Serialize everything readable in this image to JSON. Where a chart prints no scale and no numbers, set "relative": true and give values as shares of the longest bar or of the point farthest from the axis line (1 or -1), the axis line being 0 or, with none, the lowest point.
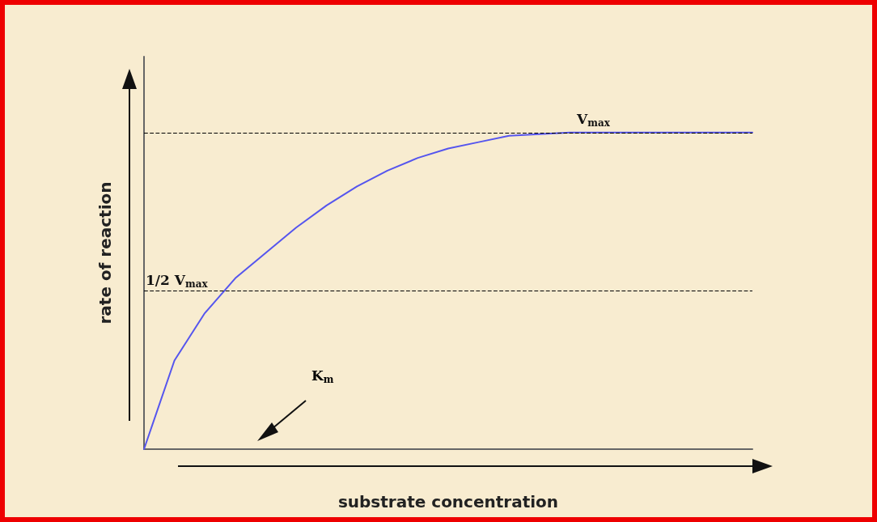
{
  "chart_data": {
    "type": "line",
    "relative": true,
    "xlabel": "substrate concentration",
    "ylabel": "rate of reaction",
    "categories": [
      null,
      null,
      null,
      null,
      null,
      null,
      null,
      null,
      null,
      null,
      null,
      null,
      null,
      null,
      null,
      null,
      null,
      null,
      null,
      null,
      null
    ],
    "series": [
      {
        "color": "#5555ee",
        "values": [
          0,
          0.28,
          0.43,
          0.54,
          0.62,
          0.7,
          0.77,
          0.83,
          0.88,
          0.92,
          0.95,
          0.97,
          0.99,
          0.995,
          1,
          1,
          1,
          1,
          1,
          1,
          1
        ]
      }
    ],
    "ref_lines": [
      {
        "axis": "y",
        "value": 1,
        "label": "V$_{max}$",
        "line_style": "dashed",
        "color": "#000000"
      },
      {
        "axis": "y",
        "value": 0.5,
        "label": "1/2 V$_{max}$",
        "line_style": "dashed",
        "color": "#000000"
      }
    ],
    "annotations": [
      "K$_{m}$"
    ],
    "marker": "none",
    "line_style": "solid",
    "grid": false
  }
}
